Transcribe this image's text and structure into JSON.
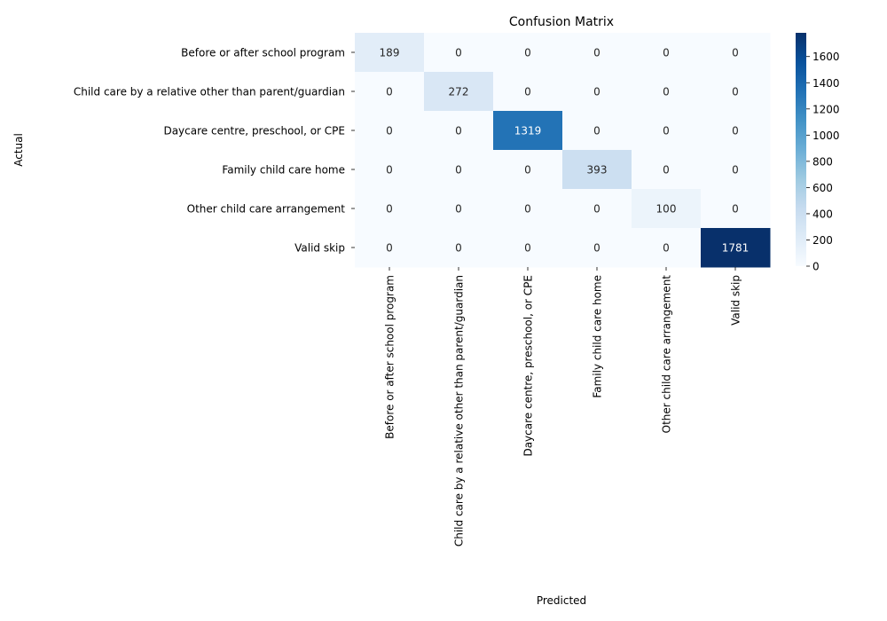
{
  "chart_data": {
    "type": "heatmap",
    "title": "Confusion Matrix",
    "xlabel": "Predicted",
    "ylabel": "Actual",
    "x_categories": [
      "Before or after school program",
      "Child care by a relative other than parent/guardian",
      "Daycare centre, preschool, or CPE",
      "Family child care home",
      "Other child care arrangement",
      "Valid skip"
    ],
    "y_categories": [
      "Before or after school program",
      "Child care by a relative other than parent/guardian",
      "Daycare centre, preschool, or CPE",
      "Family child care home",
      "Other child care arrangement",
      "Valid skip"
    ],
    "values": [
      [
        189,
        0,
        0,
        0,
        0,
        0
      ],
      [
        0,
        272,
        0,
        0,
        0,
        0
      ],
      [
        0,
        0,
        1319,
        0,
        0,
        0
      ],
      [
        0,
        0,
        0,
        393,
        0,
        0
      ],
      [
        0,
        0,
        0,
        0,
        100,
        0
      ],
      [
        0,
        0,
        0,
        0,
        0,
        1781
      ]
    ],
    "colorbar": {
      "colormap": "Blues",
      "vmin": 0,
      "vmax": 1781,
      "ticks": [
        0,
        200,
        400,
        600,
        800,
        1000,
        1200,
        1400,
        1600
      ]
    }
  }
}
